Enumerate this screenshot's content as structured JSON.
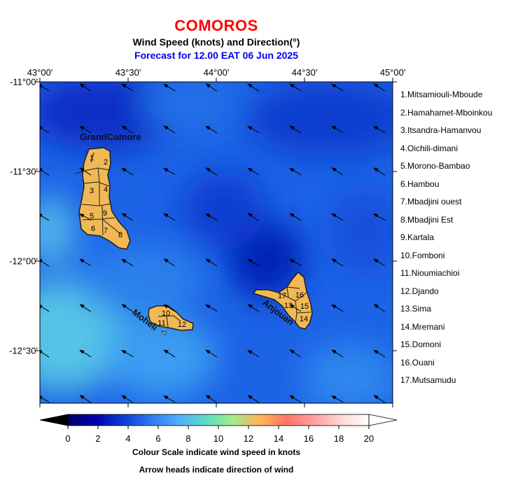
{
  "header": {
    "title": "COMOROS",
    "subtitle": "Wind Speed (knots) and Direction(°)",
    "forecast": "Forecast for  12.00 EAT 06 Jun 2025"
  },
  "axes": {
    "lon_labels": [
      "43°00'",
      "43°30'",
      "44°00'",
      "44°30'",
      "45°00'"
    ],
    "lat_labels": [
      "-11°00'",
      "-11°30'",
      "-12°00'",
      "-12°30'"
    ]
  },
  "islands": {
    "grand_comore": "GrandComore",
    "moheli": "Moheli",
    "anjouan": "Anjouan",
    "district_numbers": [
      "1",
      "2",
      "3",
      "4",
      "5",
      "6",
      "7",
      "8",
      "9",
      "10",
      "11",
      "12",
      "13",
      "14",
      "15",
      "16",
      "17"
    ]
  },
  "legend": {
    "items": [
      "1.Mitsamiouli-Mboude",
      "2.Hamahamet-Mboinkou",
      "3.Itsandra-Hamanvou",
      "4.Oichili-dimani",
      "5.Morono-Bambao",
      "6.Hambou",
      "7.Mbadjini ouest",
      "8.Mbadjini Est",
      "9.Kartala",
      "10.Fomboni",
      "11.Nioumiachioi",
      "12.Djando",
      "13.Sima",
      "14.Mremani",
      "15.Domoni",
      "16.Ouani",
      "17.Mutsamudu"
    ]
  },
  "colorbar": {
    "tick_labels": [
      "0",
      "2",
      "4",
      "6",
      "8",
      "10",
      "12",
      "14",
      "16",
      "18",
      "20"
    ],
    "colors": [
      "#000066",
      "#0000aa",
      "#0a3cd2",
      "#2d78f0",
      "#50aaff",
      "#5adcc8",
      "#a0eb8c",
      "#ffb45a",
      "#ff7864",
      "#ffa0a0",
      "#ffd7d7",
      "#ffffff"
    ],
    "caption1": "Colour Scale indicate wind speed in knots",
    "caption2": "Arrow heads indicate direction of wind"
  },
  "colors": {
    "land": "#f0b956",
    "coast": "#1e1e1e",
    "title": "#ff0000",
    "forecast": "#0000ee"
  }
}
